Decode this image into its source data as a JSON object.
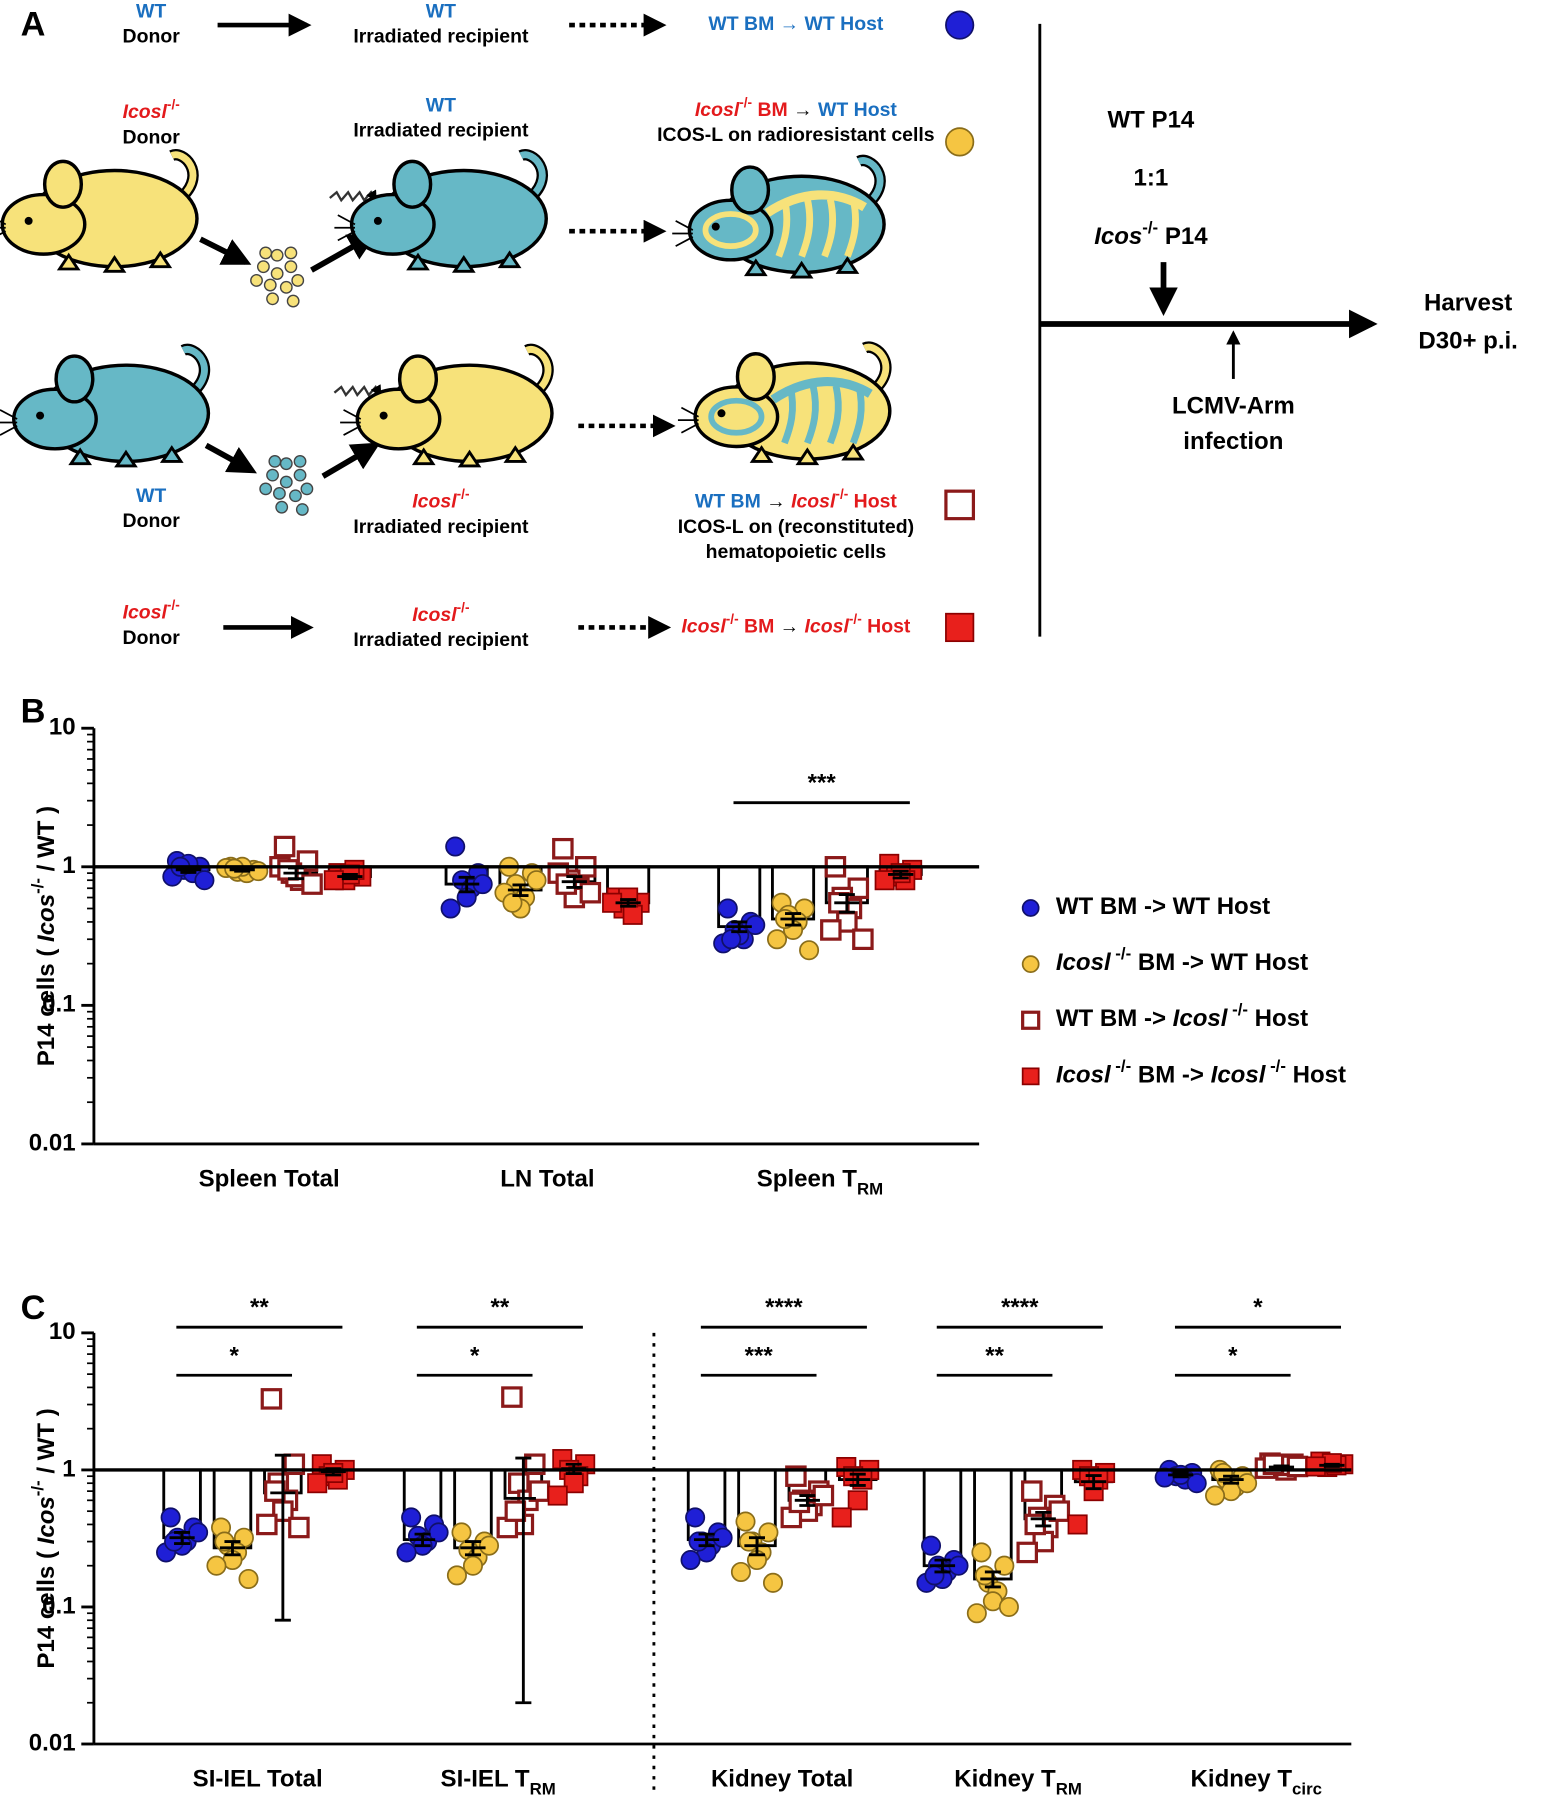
{
  "panel_a": {
    "label": "A",
    "rows": [
      {
        "donor": [
          [
            {
              "text": "WT",
              "color": "#1a6fc0"
            }
          ],
          [
            {
              "text": "Donor"
            }
          ]
        ],
        "recipient": [
          [
            {
              "text": "WT",
              "color": "#1a6fc0"
            }
          ],
          [
            {
              "text": "Irradiated recipient"
            }
          ]
        ],
        "result": [
          [
            {
              "text": "WT BM → WT Host",
              "color": "#1a6fc0"
            }
          ]
        ],
        "series": 0
      },
      {
        "donor": [
          [
            {
              "text": "Icosl",
              "style": "i",
              "color": "#e31a1c"
            },
            {
              "text": "-/-",
              "style": "sup",
              "color": "#e31a1c"
            }
          ],
          [
            {
              "text": "Donor"
            }
          ]
        ],
        "recipient": [
          [
            {
              "text": "WT",
              "color": "#1a6fc0"
            }
          ],
          [
            {
              "text": "Irradiated recipient"
            }
          ]
        ],
        "result": [
          [
            {
              "text": "Icosl",
              "style": "i",
              "color": "#e31a1c"
            },
            {
              "text": "-/-",
              "style": "sup",
              "color": "#e31a1c"
            },
            {
              "text": " BM ",
              "color": "#e31a1c"
            },
            {
              "text": "→ "
            },
            {
              "text": "WT Host",
              "color": "#1a6fc0"
            }
          ],
          [
            {
              "text": "ICOS-L on radioresistant cells"
            }
          ]
        ],
        "series": 1
      },
      {
        "donor": [
          [
            {
              "text": "WT",
              "color": "#1a6fc0"
            }
          ],
          [
            {
              "text": "Donor"
            }
          ]
        ],
        "recipient": [
          [
            {
              "text": "Icosl",
              "style": "i",
              "color": "#e31a1c"
            },
            {
              "text": "-/-",
              "style": "sup",
              "color": "#e31a1c"
            }
          ],
          [
            {
              "text": "Irradiated recipient"
            }
          ]
        ],
        "result": [
          [
            {
              "text": "WT BM ",
              "color": "#1a6fc0"
            },
            {
              "text": "→ "
            },
            {
              "text": "Icosl",
              "style": "i",
              "color": "#e31a1c"
            },
            {
              "text": "-/-",
              "style": "sup",
              "color": "#e31a1c"
            },
            {
              "text": " Host",
              "color": "#e31a1c"
            }
          ],
          [
            {
              "text": "ICOS-L on (reconstituted)"
            }
          ],
          [
            {
              "text": "hematopoietic cells"
            }
          ]
        ],
        "series": 2
      },
      {
        "donor": [
          [
            {
              "text": "Icosl",
              "style": "i",
              "color": "#e31a1c"
            },
            {
              "text": "-/-",
              "style": "sup",
              "color": "#e31a1c"
            }
          ],
          [
            {
              "text": "Donor"
            }
          ]
        ],
        "recipient": [
          [
            {
              "text": "Icosl",
              "style": "i",
              "color": "#e31a1c"
            },
            {
              "text": "-/-",
              "style": "sup",
              "color": "#e31a1c"
            }
          ],
          [
            {
              "text": "Irradiated recipient"
            }
          ]
        ],
        "result": [
          [
            {
              "text": "Icosl",
              "style": "i",
              "color": "#e31a1c"
            },
            {
              "text": "-/-",
              "style": "sup",
              "color": "#e31a1c"
            },
            {
              "text": " BM ",
              "color": "#e31a1c"
            },
            {
              "text": "→ "
            },
            {
              "text": "Icosl",
              "style": "i",
              "color": "#e31a1c"
            },
            {
              "text": "-/-",
              "style": "sup",
              "color": "#e31a1c"
            },
            {
              "text": " Host",
              "color": "#e31a1c"
            }
          ]
        ],
        "series": 3
      }
    ],
    "timeline": {
      "transfer": [
        [
          {
            "text": "WT P14"
          }
        ],
        [
          {
            "text": "1:1"
          }
        ],
        [
          {
            "text": "Icos",
            "style": "i"
          },
          {
            "text": "-/-",
            "style": "sup"
          },
          {
            "text": " P14"
          }
        ]
      ],
      "harvest": [
        [
          {
            "text": "Harvest"
          }
        ],
        [
          {
            "text": "D30+ p.i."
          }
        ]
      ],
      "infection": [
        [
          {
            "text": "LCMV-Arm"
          }
        ],
        [
          {
            "text": "infection"
          }
        ]
      ]
    }
  },
  "chart_data": [
    {
      "type": "bar",
      "panel": "B",
      "yscale": "log",
      "ylim": [
        0.01,
        10
      ],
      "yticks": [
        10,
        1,
        0.1,
        0.01
      ],
      "bar_base": 1,
      "legend": "right",
      "ylabel": [
        {
          "text": "P14 cells  (  "
        },
        {
          "text": "Icos",
          "style": "i"
        },
        {
          "text": "-/-",
          "style": "sup"
        },
        {
          "text": " / WT )"
        }
      ],
      "categories": [
        [
          {
            "text": "Spleen Total"
          }
        ],
        [
          {
            "text": "LN Total"
          }
        ],
        [
          {
            "text": "Spleen T"
          },
          {
            "text": "RM",
            "style": "sub"
          }
        ]
      ],
      "series": [
        {
          "name": [
            {
              "text": "WT BM -> WT Host"
            }
          ],
          "color": "#1f1fd6",
          "edge": "#10106a",
          "marker": "circle",
          "filled": true,
          "values": [
            0.95,
            0.75,
            0.37
          ],
          "errors": [
            0.04,
            0.09,
            0.03
          ],
          "points": [
            [
              1.1,
              1.0,
              0.95,
              0.9,
              1.05,
              0.85,
              0.8,
              1.0
            ],
            [
              1.4,
              0.9,
              0.8,
              0.7,
              0.6,
              0.5,
              0.75
            ],
            [
              0.5,
              0.4,
              0.35,
              0.3,
              0.32,
              0.28,
              0.38,
              0.3
            ]
          ]
        },
        {
          "name": [
            {
              "text": "Icosl",
              "style": "i"
            },
            {
              "text": " -/-",
              "style": "sup"
            },
            {
              "text": " BM -> WT Host"
            }
          ],
          "color": "#f5c542",
          "edge": "#8a6d1a",
          "marker": "circle",
          "filled": true,
          "values": [
            0.95,
            0.68,
            0.42
          ],
          "errors": [
            0.02,
            0.06,
            0.04
          ],
          "points": [
            [
              1.0,
              0.95,
              0.92,
              0.9,
              1.0,
              0.98,
              0.93,
              0.97
            ],
            [
              1.0,
              0.9,
              0.75,
              0.6,
              0.5,
              0.65,
              0.8,
              0.55
            ],
            [
              0.55,
              0.5,
              0.45,
              0.4,
              0.35,
              0.3,
              0.25,
              0.42
            ]
          ]
        },
        {
          "name": [
            {
              "text": " WT BM -> "
            },
            {
              "text": "Icosl",
              "style": "i"
            },
            {
              "text": " -/-",
              "style": "sup"
            },
            {
              "text": " Host"
            }
          ],
          "color": "#ffffff",
          "edge": "#8b1a1a",
          "marker": "square",
          "filled": false,
          "values": [
            0.9,
            0.78,
            0.55
          ],
          "errors": [
            0.08,
            0.07,
            0.08
          ],
          "points": [
            [
              1.4,
              1.1,
              0.9,
              0.8,
              0.85,
              1.0,
              0.75,
              0.95
            ],
            [
              1.35,
              1.0,
              0.8,
              0.7,
              0.6,
              0.9,
              0.65,
              0.75
            ],
            [
              1.0,
              0.7,
              0.6,
              0.5,
              0.4,
              0.35,
              0.3,
              0.55
            ]
          ]
        },
        {
          "name": [
            {
              "text": "Icosl",
              "style": "i"
            },
            {
              "text": " -/-",
              "style": "sup"
            },
            {
              "text": " BM -> "
            },
            {
              "text": "Icosl",
              "style": "i"
            },
            {
              "text": " -/-",
              "style": "sup"
            },
            {
              "text": " Host"
            }
          ],
          "color": "#e8201c",
          "edge": "#8b0000",
          "marker": "square",
          "filled": true,
          "values": [
            0.85,
            0.55,
            0.88
          ],
          "errors": [
            0.03,
            0.03,
            0.05
          ],
          "points": [
            [
              0.9,
              0.85,
              0.8,
              0.95,
              0.88,
              0.8
            ],
            [
              0.6,
              0.55,
              0.5,
              0.45,
              0.6,
              0.55
            ],
            [
              1.05,
              0.95,
              0.85,
              0.8,
              0.9,
              0.8
            ]
          ]
        }
      ],
      "significance": [
        {
          "group": 2,
          "from": 0,
          "to": 3,
          "label": "***"
        }
      ]
    },
    {
      "type": "bar",
      "panel": "C",
      "yscale": "log",
      "ylim": [
        0.01,
        10
      ],
      "yticks": [
        10,
        1,
        0.1,
        0.01
      ],
      "bar_base": 1,
      "separator_after": 1,
      "ylabel": [
        {
          "text": "P14 cells  (  "
        },
        {
          "text": "Icos",
          "style": "i"
        },
        {
          "text": "-/-",
          "style": "sup"
        },
        {
          "text": " / WT )"
        }
      ],
      "categories": [
        [
          {
            "text": "SI-IEL Total"
          }
        ],
        [
          {
            "text": "SI-IEL T"
          },
          {
            "text": "RM",
            "style": "sub"
          }
        ],
        [
          {
            "text": "Kidney Total"
          }
        ],
        [
          {
            "text": "Kidney T"
          },
          {
            "text": "RM",
            "style": "sub"
          }
        ],
        [
          {
            "text": "Kidney T"
          },
          {
            "text": "circ",
            "style": "sub"
          }
        ]
      ],
      "series": [
        {
          "color": "#1f1fd6",
          "edge": "#10106a",
          "marker": "circle",
          "filled": true,
          "values": [
            0.32,
            0.31,
            0.31,
            0.2,
            0.92
          ],
          "errors": [
            0.03,
            0.03,
            0.03,
            0.02,
            0.03
          ],
          "points": [
            [
              0.45,
              0.38,
              0.32,
              0.3,
              0.28,
              0.25,
              0.35,
              0.3
            ],
            [
              0.45,
              0.4,
              0.33,
              0.3,
              0.28,
              0.25,
              0.35
            ],
            [
              0.45,
              0.35,
              0.3,
              0.28,
              0.25,
              0.22,
              0.32,
              0.3
            ],
            [
              0.28,
              0.22,
              0.2,
              0.18,
              0.16,
              0.15,
              0.2,
              0.17
            ],
            [
              1.0,
              0.95,
              0.9,
              0.85,
              0.92,
              0.88,
              0.8
            ]
          ]
        },
        {
          "color": "#f5c542",
          "edge": "#8a6d1a",
          "marker": "circle",
          "filled": true,
          "values": [
            0.27,
            0.27,
            0.28,
            0.16,
            0.85
          ],
          "errors": [
            0.03,
            0.03,
            0.04,
            0.02,
            0.05
          ],
          "points": [
            [
              0.38,
              0.32,
              0.28,
              0.25,
              0.22,
              0.2,
              0.16,
              0.3
            ],
            [
              0.35,
              0.3,
              0.26,
              0.23,
              0.2,
              0.17,
              0.28
            ],
            [
              0.42,
              0.35,
              0.3,
              0.25,
              0.22,
              0.18,
              0.15,
              0.3
            ],
            [
              0.25,
              0.2,
              0.15,
              0.13,
              0.11,
              0.09,
              0.1,
              0.17
            ],
            [
              1.0,
              0.9,
              0.85,
              0.75,
              0.7,
              0.65,
              0.8,
              0.95
            ]
          ]
        },
        {
          "color": "#ffffff",
          "edge": "#8b1a1a",
          "marker": "square",
          "filled": false,
          "values": [
            0.68,
            0.62,
            0.6,
            0.44,
            1.05
          ],
          "errors": [
            0.6,
            0.6,
            0.05,
            0.05,
            0.02
          ],
          "points": [
            [
              3.3,
              1.1,
              0.8,
              0.6,
              0.5,
              0.4,
              0.38,
              0.7
            ],
            [
              3.4,
              1.1,
              0.8,
              0.6,
              0.4,
              0.38,
              0.7,
              0.5
            ],
            [
              0.9,
              0.7,
              0.6,
              0.55,
              0.5,
              0.45,
              0.65,
              0.58
            ],
            [
              0.7,
              0.55,
              0.45,
              0.38,
              0.3,
              0.25,
              0.5,
              0.4
            ],
            [
              1.12,
              1.1,
              1.05,
              1.0,
              1.08,
              1.03,
              1.06,
              1.1
            ]
          ]
        },
        {
          "color": "#e8201c",
          "edge": "#8b0000",
          "marker": "square",
          "filled": true,
          "values": [
            0.97,
            1.02,
            0.85,
            0.82,
            1.08
          ],
          "errors": [
            0.05,
            0.08,
            0.08,
            0.09,
            0.02
          ],
          "points": [
            [
              1.1,
              1.0,
              0.9,
              0.85,
              0.95,
              0.8
            ],
            [
              1.2,
              1.1,
              1.0,
              0.9,
              0.8,
              0.65
            ],
            [
              1.05,
              1.0,
              0.9,
              0.85,
              0.6,
              0.45
            ],
            [
              1.0,
              0.95,
              0.9,
              0.85,
              0.7,
              0.4
            ],
            [
              1.15,
              1.1,
              1.05,
              1.08,
              1.12,
              1.06
            ]
          ]
        }
      ],
      "significance": [
        {
          "group": 0,
          "from": 0,
          "to": 2,
          "label": "*"
        },
        {
          "group": 0,
          "from": 0,
          "to": 3,
          "label": "**"
        },
        {
          "group": 1,
          "from": 0,
          "to": 2,
          "label": "*"
        },
        {
          "group": 1,
          "from": 0,
          "to": 3,
          "label": "**"
        },
        {
          "group": 2,
          "from": 0,
          "to": 2,
          "label": "***"
        },
        {
          "group": 2,
          "from": 0,
          "to": 3,
          "label": "****"
        },
        {
          "group": 3,
          "from": 0,
          "to": 2,
          "label": "**"
        },
        {
          "group": 3,
          "from": 0,
          "to": 3,
          "label": "****"
        },
        {
          "group": 4,
          "from": 0,
          "to": 2,
          "label": "*"
        },
        {
          "group": 4,
          "from": 0,
          "to": 3,
          "label": "*"
        }
      ]
    }
  ]
}
